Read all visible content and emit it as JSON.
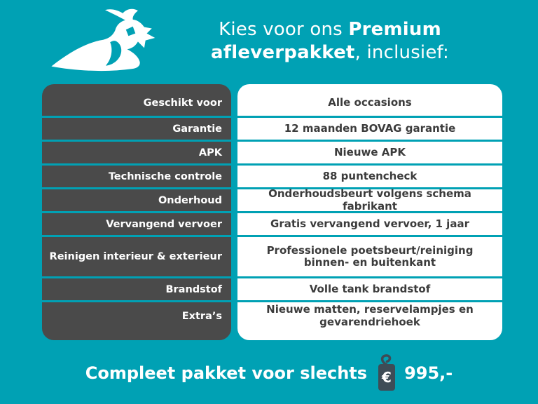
{
  "colors": {
    "background": "#00a1b4",
    "label_bg": "#4a4a4a",
    "value_bg": "#ffffff",
    "label_text": "#ffffff",
    "value_text": "#3c3c3c",
    "tag_bg": "#3e4c56",
    "header_text": "#ffffff"
  },
  "header": {
    "line1_regular": "Kies voor ons ",
    "line1_bold": "Premium",
    "line2_bold": "afleverpakket",
    "line2_regular": ", inclusief:",
    "logo_icon": "lapwing-bird-icon"
  },
  "table": {
    "rows": [
      {
        "label": "Geschikt voor",
        "value": "Alle occasions"
      },
      {
        "label": "Garantie",
        "value": "12 maanden BOVAG garantie"
      },
      {
        "label": "APK",
        "value": "Nieuwe APK"
      },
      {
        "label": "Technische controle",
        "value": "88 puntencheck"
      },
      {
        "label": "Onderhoud",
        "value": "Onderhoudsbeurt volgens schema fabrikant"
      },
      {
        "label": "Vervangend vervoer",
        "value": "Gratis vervangend vervoer, 1 jaar"
      },
      {
        "label": "Reinigen interieur & exterieur",
        "value": "Professionele poetsbeurt/reiniging\nbinnen- en buitenkant"
      },
      {
        "label": "Brandstof",
        "value": "Volle tank brandstof"
      },
      {
        "label": "Extra’s",
        "value": "Nieuwe matten, reservelampjes en\ngevarendriehoek"
      }
    ]
  },
  "footer": {
    "label": "Compleet pakket voor slechts",
    "tag_icon": "price-tag-euro-icon",
    "tag_symbol": "€",
    "price": "995,-"
  }
}
